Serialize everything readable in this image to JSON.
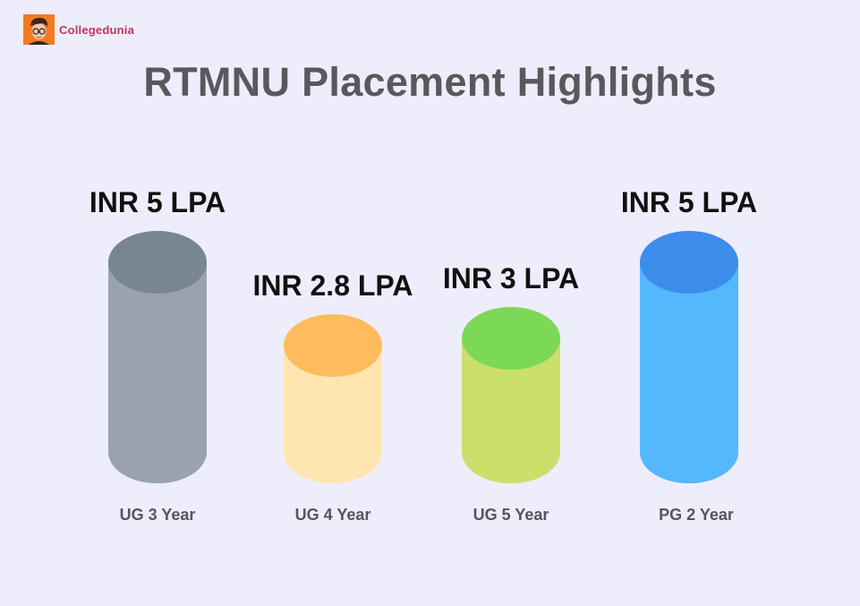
{
  "brand": {
    "name": "Collegedunia",
    "logo_icon": "student-avatar-icon",
    "color": "#c0365f"
  },
  "title": "RTMNU Placement Highlights",
  "chart_data": {
    "type": "bar",
    "style": "3d-cylinder",
    "title": "RTMNU Placement Highlights",
    "xlabel": "",
    "ylabel": "",
    "grid": false,
    "legend": false,
    "unit": "INR LPA",
    "categories": [
      "UG 3 Year",
      "UG 4 Year",
      "UG 5 Year",
      "PG 2 Year"
    ],
    "values": [
      5,
      2.8,
      3,
      5
    ],
    "data_labels": [
      "INR 5 LPA",
      "INR 2.8 LPA",
      "INR 3 LPA",
      "INR 5 LPA"
    ],
    "colors": [
      {
        "top": "#788690",
        "body": "#98a3af"
      },
      {
        "top": "#ffbc5c",
        "body": "#ffe6b0"
      },
      {
        "top": "#7bd957",
        "body": "#cbe06a"
      },
      {
        "top": "#3d8ded",
        "body": "#54b8fd"
      }
    ]
  }
}
